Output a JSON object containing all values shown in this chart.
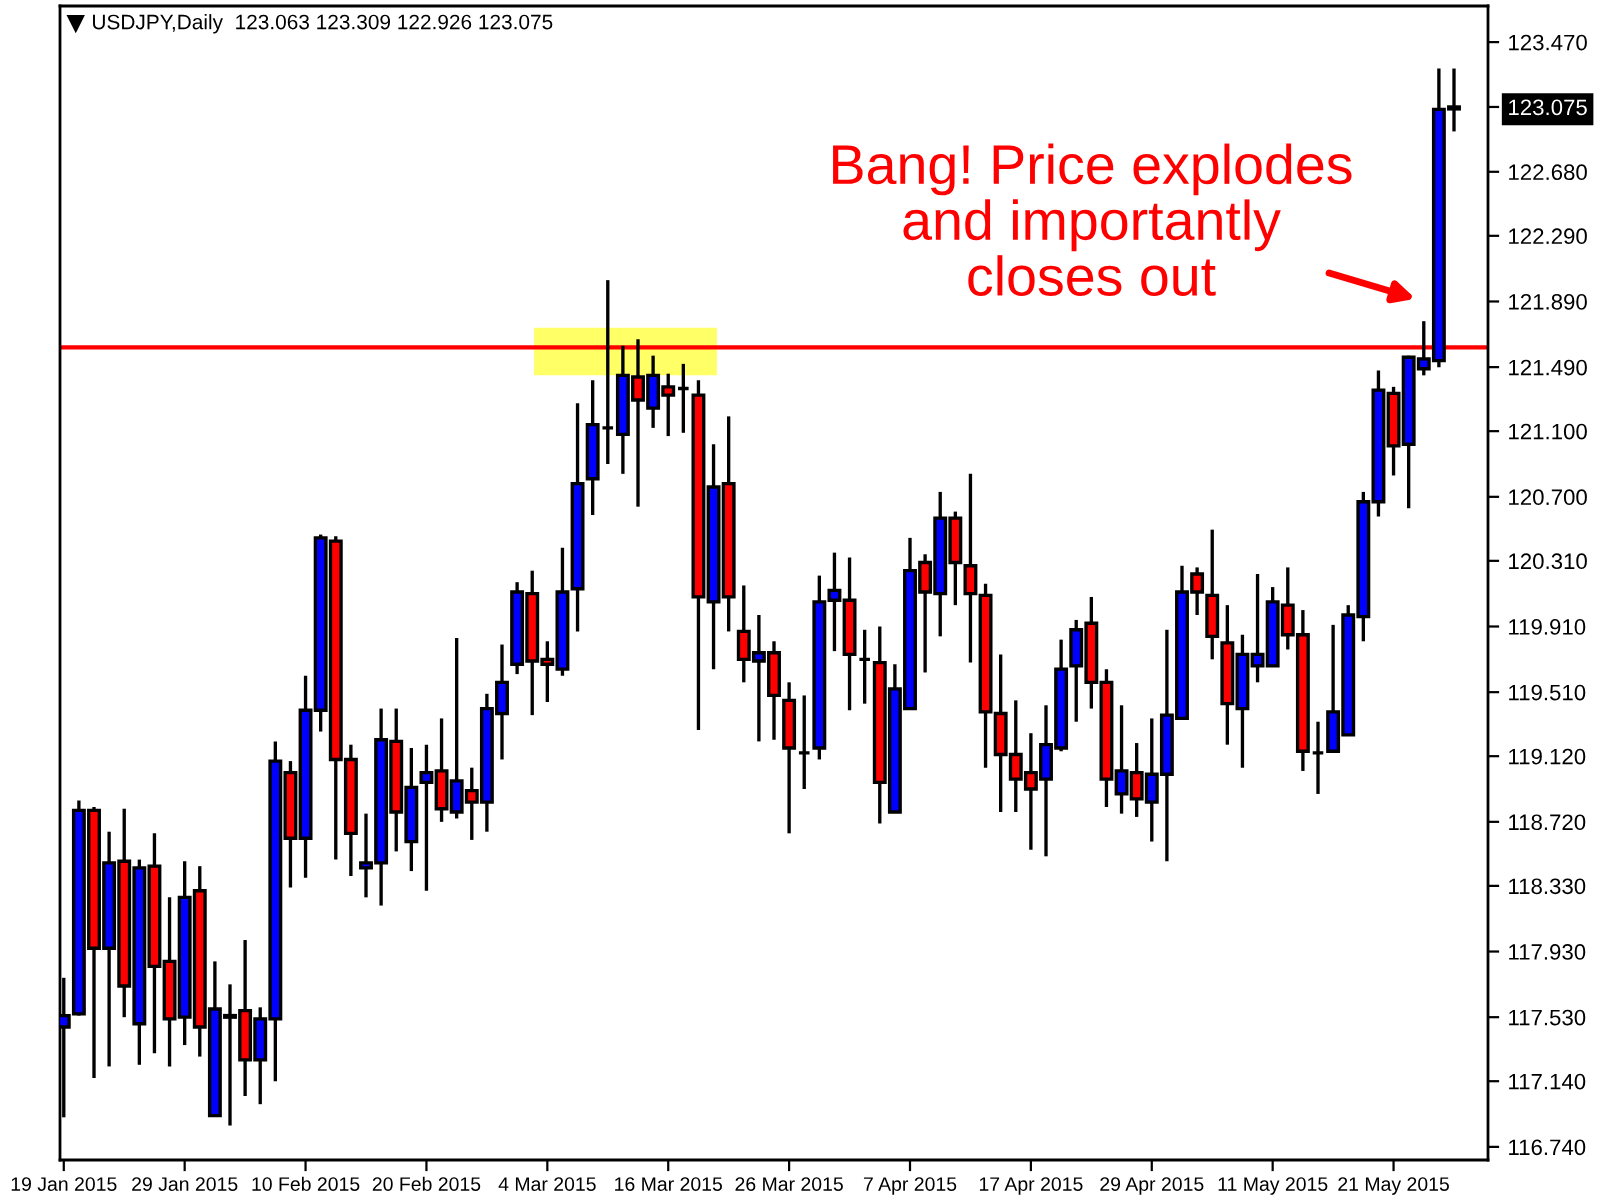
{
  "chart_data": {
    "type": "candlestick",
    "title": "USDJPY,Daily  123.063 123.309 122.926 123.075",
    "categories": [
      "19 Jan 2015",
      null,
      null,
      null,
      null,
      null,
      null,
      null,
      "29 Jan 2015",
      null,
      null,
      null,
      null,
      null,
      null,
      null,
      "10 Feb 2015",
      null,
      null,
      null,
      null,
      null,
      null,
      null,
      "20 Feb 2015",
      null,
      null,
      null,
      null,
      null,
      null,
      null,
      "4 Mar 2015",
      null,
      null,
      null,
      null,
      null,
      null,
      null,
      "16 Mar 2015",
      null,
      null,
      null,
      null,
      null,
      null,
      null,
      "26 Mar 2015",
      null,
      null,
      null,
      null,
      null,
      null,
      null,
      "7 Apr 2015",
      null,
      null,
      null,
      null,
      null,
      null,
      null,
      "17 Apr 2015",
      null,
      null,
      null,
      null,
      null,
      null,
      null,
      "29 Apr 2015",
      null,
      null,
      null,
      null,
      null,
      null,
      null,
      "11 May 2015",
      null,
      null,
      null,
      null,
      null,
      null,
      null,
      "21 May 2015",
      null,
      null,
      null,
      null
    ],
    "ohlc": [
      [
        117.47,
        117.77,
        116.92,
        117.54
      ],
      [
        117.55,
        118.85,
        117.54,
        118.79
      ],
      [
        118.79,
        118.81,
        117.16,
        117.95
      ],
      [
        117.95,
        118.66,
        117.23,
        118.47
      ],
      [
        118.48,
        118.8,
        117.53,
        117.72
      ],
      [
        117.49,
        118.49,
        117.24,
        118.44
      ],
      [
        118.45,
        118.65,
        117.31,
        117.84
      ],
      [
        117.87,
        118.26,
        117.23,
        117.52
      ],
      [
        117.53,
        118.48,
        117.36,
        118.26
      ],
      [
        118.3,
        118.45,
        117.29,
        117.47
      ],
      [
        116.93,
        117.87,
        116.93,
        117.58
      ],
      [
        117.53,
        117.73,
        116.87,
        117.54
      ],
      [
        117.57,
        118.0,
        117.05,
        117.27
      ],
      [
        117.27,
        117.59,
        117.0,
        117.52
      ],
      [
        117.52,
        119.21,
        117.14,
        119.09
      ],
      [
        119.02,
        119.09,
        118.32,
        118.62
      ],
      [
        118.62,
        119.61,
        118.38,
        119.4
      ],
      [
        119.4,
        120.47,
        119.27,
        120.45
      ],
      [
        120.43,
        120.46,
        118.49,
        119.1
      ],
      [
        119.1,
        119.19,
        118.39,
        118.65
      ],
      [
        118.44,
        118.77,
        118.26,
        118.47
      ],
      [
        118.47,
        119.41,
        118.21,
        119.22
      ],
      [
        119.21,
        119.41,
        118.54,
        118.78
      ],
      [
        118.6,
        119.17,
        118.42,
        118.93
      ],
      [
        118.96,
        119.19,
        118.3,
        119.02
      ],
      [
        119.03,
        119.35,
        118.72,
        118.8
      ],
      [
        118.78,
        119.84,
        118.74,
        118.97
      ],
      [
        118.91,
        119.05,
        118.61,
        118.84
      ],
      [
        118.84,
        119.5,
        118.66,
        119.41
      ],
      [
        119.38,
        119.8,
        119.1,
        119.57
      ],
      [
        119.68,
        120.18,
        119.62,
        120.12
      ],
      [
        120.11,
        120.25,
        119.37,
        119.7
      ],
      [
        119.71,
        119.82,
        119.45,
        119.68
      ],
      [
        119.65,
        120.39,
        119.61,
        120.12
      ],
      [
        120.14,
        121.27,
        119.88,
        120.78
      ],
      [
        120.81,
        121.41,
        120.59,
        121.14
      ],
      [
        121.12,
        122.02,
        120.9,
        121.12
      ],
      [
        121.08,
        121.62,
        120.84,
        121.44
      ],
      [
        121.43,
        121.66,
        120.64,
        121.29
      ],
      [
        121.24,
        121.56,
        121.12,
        121.44
      ],
      [
        121.37,
        121.45,
        121.07,
        121.32
      ],
      [
        121.36,
        121.51,
        121.09,
        121.36
      ],
      [
        121.32,
        121.41,
        119.28,
        120.09
      ],
      [
        120.06,
        121.02,
        119.65,
        120.76
      ],
      [
        120.78,
        121.19,
        119.88,
        120.09
      ],
      [
        119.88,
        120.16,
        119.57,
        119.71
      ],
      [
        119.7,
        119.98,
        119.21,
        119.75
      ],
      [
        119.75,
        119.82,
        119.22,
        119.49
      ],
      [
        119.46,
        119.57,
        118.65,
        119.17
      ],
      [
        119.14,
        119.49,
        118.92,
        119.14
      ],
      [
        119.17,
        120.22,
        119.1,
        120.06
      ],
      [
        120.07,
        120.36,
        119.76,
        120.13
      ],
      [
        120.07,
        120.33,
        119.4,
        119.74
      ],
      [
        119.71,
        119.89,
        119.44,
        119.71
      ],
      [
        119.69,
        119.91,
        118.71,
        118.96
      ],
      [
        118.78,
        119.68,
        118.78,
        119.53
      ],
      [
        119.41,
        120.45,
        119.41,
        120.25
      ],
      [
        120.3,
        120.35,
        119.63,
        120.12
      ],
      [
        120.11,
        120.73,
        119.85,
        120.57
      ],
      [
        120.57,
        120.61,
        120.04,
        120.3
      ],
      [
        120.28,
        120.84,
        119.69,
        120.11
      ],
      [
        120.1,
        120.17,
        119.05,
        119.39
      ],
      [
        119.38,
        119.74,
        118.78,
        119.13
      ],
      [
        119.13,
        119.46,
        118.78,
        118.98
      ],
      [
        119.02,
        119.26,
        118.55,
        118.92
      ],
      [
        118.98,
        119.43,
        118.51,
        119.19
      ],
      [
        119.17,
        119.83,
        119.15,
        119.65
      ],
      [
        119.67,
        119.95,
        119.33,
        119.89
      ],
      [
        119.93,
        120.09,
        119.41,
        119.57
      ],
      [
        119.57,
        119.65,
        118.81,
        118.98
      ],
      [
        118.89,
        119.43,
        118.77,
        119.03
      ],
      [
        119.02,
        119.2,
        118.75,
        118.86
      ],
      [
        118.84,
        119.35,
        118.6,
        119.01
      ],
      [
        119.01,
        119.89,
        118.48,
        119.37
      ],
      [
        119.35,
        120.28,
        119.35,
        120.12
      ],
      [
        120.23,
        120.27,
        119.98,
        120.12
      ],
      [
        120.1,
        120.5,
        119.71,
        119.85
      ],
      [
        119.81,
        120.04,
        119.19,
        119.44
      ],
      [
        119.41,
        119.86,
        119.05,
        119.74
      ],
      [
        119.67,
        120.23,
        119.57,
        119.74
      ],
      [
        119.67,
        120.15,
        119.67,
        120.06
      ],
      [
        120.04,
        120.27,
        119.77,
        119.86
      ],
      [
        119.86,
        120.01,
        119.03,
        119.15
      ],
      [
        119.14,
        119.33,
        118.89,
        119.14
      ],
      [
        119.15,
        119.92,
        119.15,
        119.39
      ],
      [
        119.25,
        120.04,
        119.25,
        119.98
      ],
      [
        119.97,
        120.73,
        119.82,
        120.67
      ],
      [
        120.67,
        121.47,
        120.58,
        121.35
      ],
      [
        121.33,
        121.37,
        120.83,
        121.01
      ],
      [
        121.02,
        121.56,
        120.63,
        121.55
      ],
      [
        121.48,
        121.77,
        121.44,
        121.54
      ],
      [
        121.53,
        123.31,
        121.49,
        123.06
      ],
      [
        123.063,
        123.309,
        122.926,
        123.075
      ]
    ],
    "ylim": [
      116.66,
      123.69
    ],
    "yticks": [
      {
        "value": 123.47,
        "label": "123.470"
      },
      123.075,
      {
        "value": 122.68,
        "label": "122.680"
      },
      {
        "value": 122.29,
        "label": "122.290"
      },
      {
        "value": 121.89,
        "label": "121.890"
      },
      {
        "value": 121.49,
        "label": "121.490"
      },
      {
        "value": 121.1,
        "label": "121.100"
      },
      {
        "value": 120.7,
        "label": "120.700"
      },
      {
        "value": 120.31,
        "label": "120.310"
      },
      {
        "value": 119.91,
        "label": "119.910"
      },
      {
        "value": 119.51,
        "label": "119.510"
      },
      {
        "value": 119.12,
        "label": "119.120"
      },
      {
        "value": 118.72,
        "label": "118.720"
      },
      {
        "value": 118.33,
        "label": "118.330"
      },
      {
        "value": 117.93,
        "label": "117.930"
      },
      {
        "value": 117.53,
        "label": "117.530"
      },
      {
        "value": 117.14,
        "label": "117.140"
      },
      {
        "value": 116.74,
        "label": "116.740"
      }
    ],
    "ref_lines": [
      {
        "axis": "y",
        "value": 121.61,
        "color": "#ff0000"
      }
    ],
    "bands": [
      {
        "axis": "y",
        "from": 121.44,
        "to": 121.73,
        "color": "#ffff66"
      }
    ],
    "annotations": [
      "Bang! Price explodes\nand importantly\ncloses out"
    ],
    "grid": false,
    "legend": false
  }
}
